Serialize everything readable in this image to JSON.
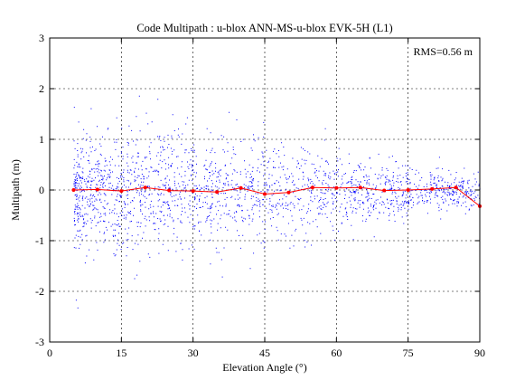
{
  "chart_data": {
    "type": "scatter",
    "title": "Code Multipath : u-blox ANN-MS-u-blox EVK-5H (L1)",
    "xlabel": "Elevation Angle (°)",
    "ylabel": "Multipath (m)",
    "xlim": [
      0,
      90
    ],
    "ylim": [
      -3,
      3
    ],
    "xticks": [
      "0",
      "15",
      "30",
      "45",
      "60",
      "75",
      "90"
    ],
    "yticks": [
      "-3",
      "-2",
      "-1",
      "0",
      "1",
      "2",
      "3"
    ],
    "grid": true,
    "annotation": "RMS=0.56 m",
    "colors": {
      "scatter": "#0000ff",
      "mean": "#ff0000",
      "grid": "#000000"
    },
    "series": [
      {
        "role": "raw multipath samples (dense point cloud)",
        "x_range": [
          5,
          90
        ],
        "y_envelope": [
          {
            "x": 5,
            "lo": -1.3,
            "hi": 1.5
          },
          {
            "x": 15,
            "lo": -1.4,
            "hi": 1.6
          },
          {
            "x": 30,
            "lo": -1.3,
            "hi": 1.4
          },
          {
            "x": 45,
            "lo": -1.2,
            "hi": 1.3
          },
          {
            "x": 60,
            "lo": -0.9,
            "hi": 1.0
          },
          {
            "x": 75,
            "lo": -0.6,
            "hi": 0.7
          },
          {
            "x": 85,
            "lo": -0.4,
            "hi": 0.5
          }
        ]
      },
      {
        "role": "binned mean",
        "x": [
          5,
          10,
          15,
          20,
          25,
          30,
          35,
          40,
          45,
          50,
          55,
          60,
          65,
          70,
          75,
          80,
          85,
          90
        ],
        "y": [
          0.0,
          0.01,
          -0.02,
          0.05,
          -0.01,
          -0.02,
          -0.04,
          0.04,
          -0.08,
          -0.05,
          0.05,
          0.04,
          0.05,
          -0.01,
          0.0,
          0.02,
          0.05,
          -0.32
        ]
      }
    ]
  }
}
